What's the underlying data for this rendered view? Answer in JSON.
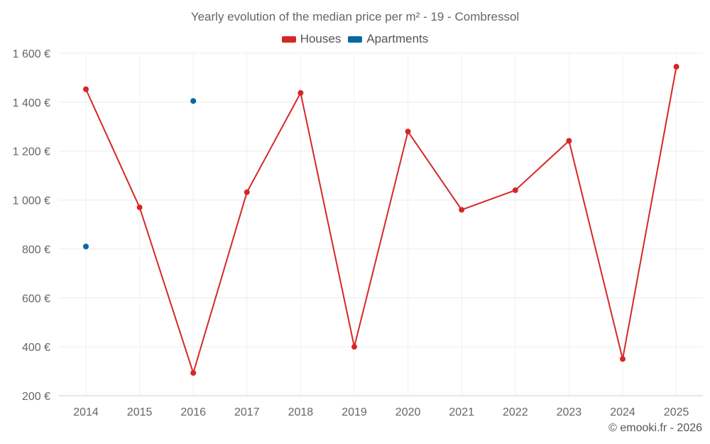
{
  "chart_data": {
    "type": "line",
    "title": "Yearly evolution of the median price per m² - 19 - Combressol",
    "xlabel": "",
    "ylabel": "",
    "categories": [
      "2014",
      "2015",
      "2016",
      "2017",
      "2018",
      "2019",
      "2020",
      "2021",
      "2022",
      "2023",
      "2024",
      "2025"
    ],
    "ylim": [
      200,
      1600
    ],
    "yticks": [
      200,
      400,
      600,
      800,
      1000,
      1200,
      1400,
      1600
    ],
    "ytick_labels": [
      "200 €",
      "400 €",
      "600 €",
      "800 €",
      "1 000 €",
      "1 200 €",
      "1 400 €",
      "1 600 €"
    ],
    "grid": true,
    "legend_position": "top-center",
    "series": [
      {
        "name": "Houses",
        "color": "#d62728",
        "values": [
          1453,
          970,
          293,
          1032,
          1438,
          400,
          1280,
          960,
          1040,
          1242,
          350,
          1545
        ]
      },
      {
        "name": "Apartments",
        "color": "#0869a1",
        "values": [
          810,
          null,
          1405,
          null,
          null,
          null,
          null,
          null,
          null,
          null,
          null,
          null
        ]
      }
    ]
  },
  "credit": "© emooki.fr - 2026"
}
